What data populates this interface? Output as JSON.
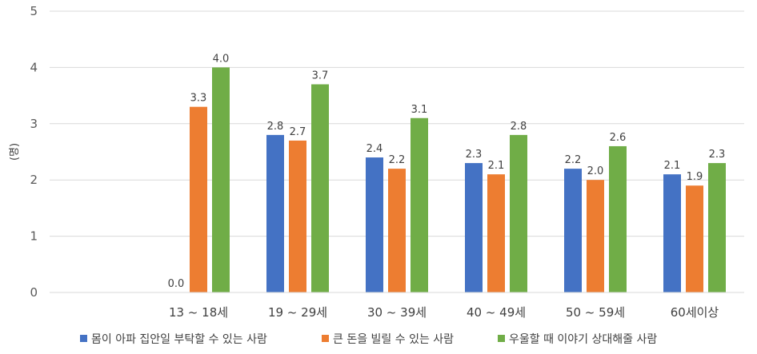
{
  "chart_data": {
    "type": "bar",
    "title": "",
    "xlabel": "",
    "ylabel": "(명)",
    "ylim": [
      0,
      5
    ],
    "yticks": [
      0,
      1,
      2,
      3,
      4,
      5
    ],
    "grid": true,
    "legend_position": "bottom",
    "categories": [
      "",
      "13 ~ 18세",
      "19 ~ 29세",
      "30 ~ 39세",
      "40 ~ 49세",
      "50 ~ 59세",
      "60세이상"
    ],
    "series": [
      {
        "name": "몸이 아파 집안일 부탁할 수 있는 사람",
        "color": "#4472C4",
        "values": [
          null,
          0.0,
          2.8,
          2.4,
          2.3,
          2.2,
          2.1
        ],
        "labels": [
          "",
          "0.0",
          "2.8",
          "2.4",
          "2.3",
          "2.2",
          "2.1"
        ]
      },
      {
        "name": "큰 돈을 빌릴 수 있는 사람",
        "color": "#ED7D31",
        "values": [
          null,
          3.3,
          2.7,
          2.2,
          2.1,
          2.0,
          1.9
        ],
        "labels": [
          "",
          "3.3",
          "2.7",
          "2.2",
          "2.1",
          "2.0",
          "1.9"
        ]
      },
      {
        "name": "우울할 때 이야기 상대해줄 사람",
        "color": "#70AD47",
        "values": [
          null,
          4.0,
          3.7,
          3.1,
          2.8,
          2.6,
          2.3
        ],
        "labels": [
          "",
          "4.0",
          "3.7",
          "3.1",
          "2.8",
          "2.6",
          "2.3"
        ]
      }
    ]
  }
}
